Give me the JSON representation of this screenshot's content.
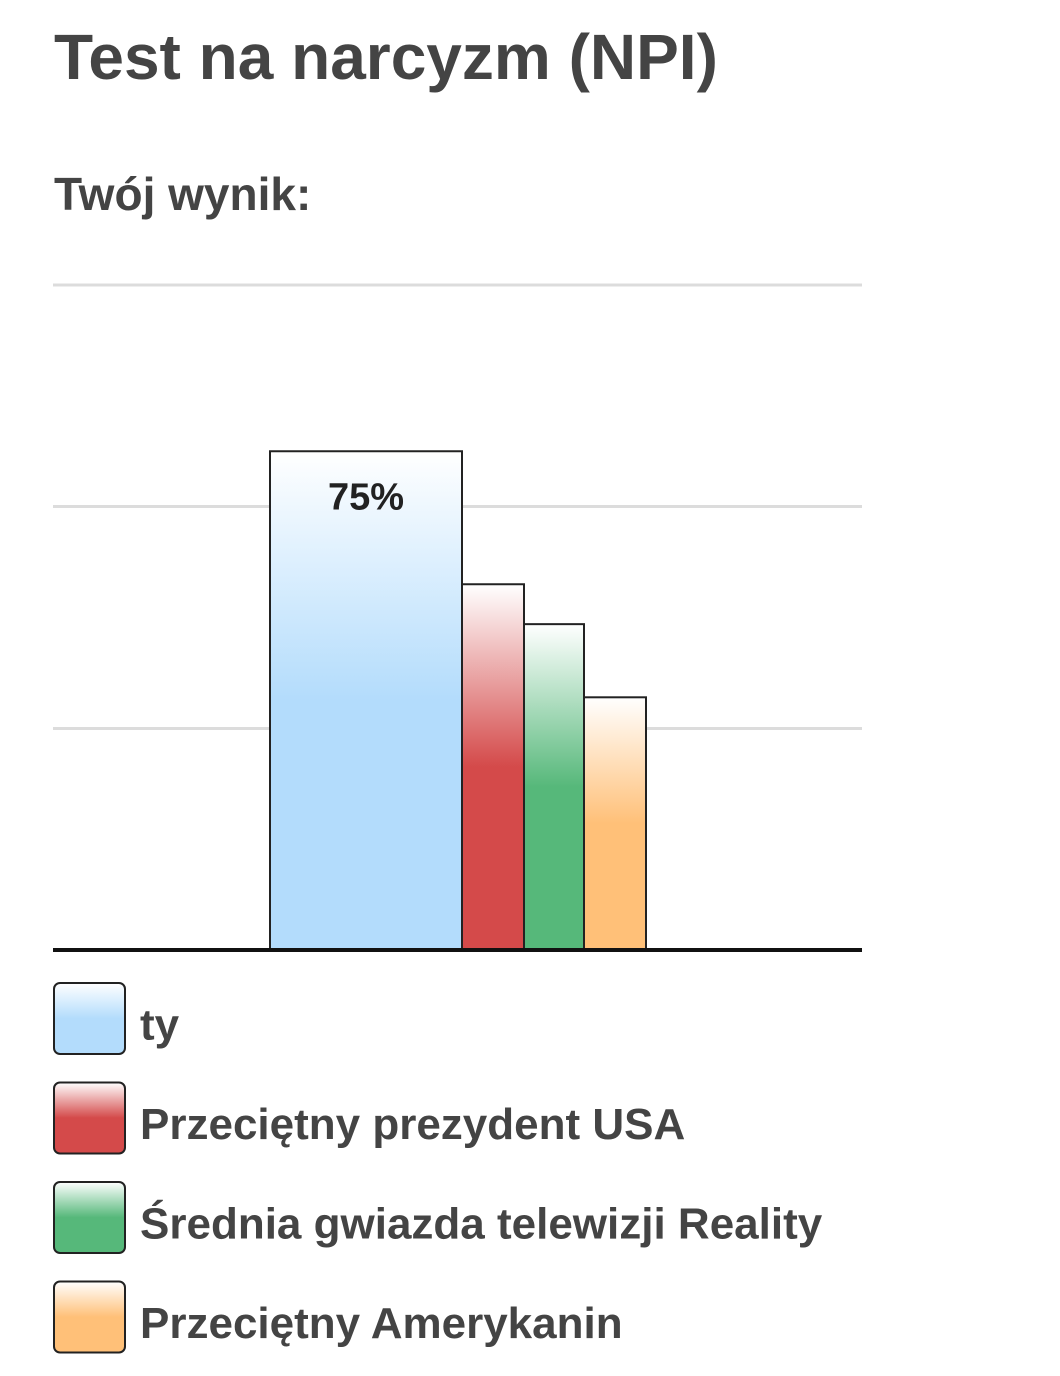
{
  "chart_data": {
    "type": "bar",
    "title": "Test na narcyzm (NPI)",
    "subtitle": "Twój wynik:",
    "categories": [
      null
    ],
    "series": [
      {
        "name": "ty",
        "color": "#b3dcfc",
        "values": [
          75
        ],
        "value_labels": [
          "75%"
        ]
      },
      {
        "name": "Przeciętny prezydent USA",
        "color": "#d44a4a",
        "values": [
          55
        ]
      },
      {
        "name": "Średnia gwiazda telewizji Reality",
        "color": "#56b87a",
        "values": [
          49
        ]
      },
      {
        "name": "Przeciętny Amerykanin",
        "color": "#ffc078",
        "values": [
          38
        ]
      }
    ],
    "ylim": [
      0,
      100
    ],
    "yticks": [
      0,
      33.3,
      66.7,
      100
    ],
    "grid": true
  }
}
